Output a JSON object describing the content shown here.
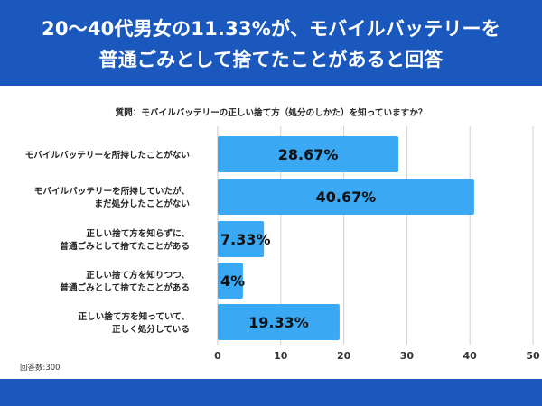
{
  "header": {
    "title_line1": "20〜40代男女の11.33%が、モバイルバッテリーを",
    "title_line2": "普通ごみとして捨てたことがあると回答"
  },
  "question": "質問：モバイルバッテリーの正しい捨て方（処分のしかた）を知っていますか？",
  "footnote": "回答数:300",
  "colors": {
    "header_bg": "#1a58bd",
    "bar_fill": "#3aa8f2",
    "gridline": "#d0d0d0"
  },
  "chart_data": {
    "type": "bar",
    "orientation": "horizontal",
    "categories": [
      [
        "モバイルバッテリーを所持したことがない"
      ],
      [
        "モバイルバッテリーを所持していたが、",
        "まだ処分したことがない"
      ],
      [
        "正しい捨て方を知らずに、",
        "普通ごみとして捨てたことがある"
      ],
      [
        "正しい捨て方を知りつつ、",
        "普通ごみとして捨てたことがある"
      ],
      [
        "正しい捨て方を知っていて、",
        "正しく処分している"
      ]
    ],
    "values": [
      28.67,
      40.67,
      7.33,
      4,
      19.33
    ],
    "value_labels": [
      "28.67%",
      "40.67%",
      "7.33%",
      "4%",
      "19.33%"
    ],
    "x_ticks": [
      0,
      10,
      20,
      30,
      40,
      50
    ],
    "xlim": [
      0,
      50
    ],
    "grid": true
  }
}
